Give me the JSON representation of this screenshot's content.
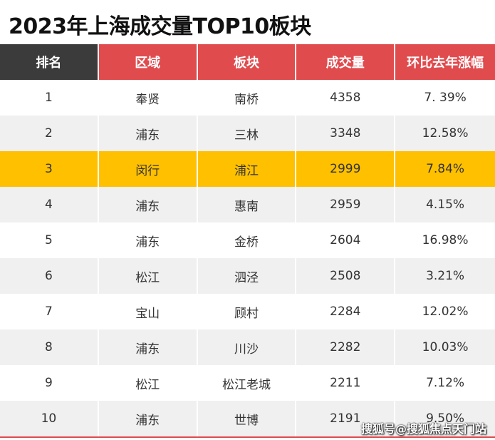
{
  "header": {
    "title": "2023年上海成交量TOP10板块"
  },
  "table": {
    "columns": [
      "排名",
      "区域",
      "板块",
      "成交量",
      "环比去年涨幅"
    ],
    "rows": [
      [
        "1",
        "奉贤",
        "南桥",
        "4358",
        "7. 39%"
      ],
      [
        "2",
        "浦东",
        "三林",
        "3348",
        "12.58%"
      ],
      [
        "3",
        "闵行",
        "浦江",
        "2999",
        "7.84%"
      ],
      [
        "4",
        "浦东",
        "惠南",
        "2959",
        "4.15%"
      ],
      [
        "5",
        "浦东",
        "金桥",
        "2604",
        "16.98%"
      ],
      [
        "6",
        "松江",
        "泗泾",
        "2508",
        "3.21%"
      ],
      [
        "7",
        "宝山",
        "顾村",
        "2284",
        "12.02%"
      ],
      [
        "8",
        "浦东",
        "川沙",
        "2282",
        "10.03%"
      ],
      [
        "9",
        "松江",
        "松江老城",
        "2211",
        "7.12%"
      ],
      [
        "10",
        "浦东",
        "世博",
        "2191",
        "9.50%"
      ]
    ],
    "highlight_row": 2
  },
  "watermark": "搜狐号@搜狐焦点天门站"
}
